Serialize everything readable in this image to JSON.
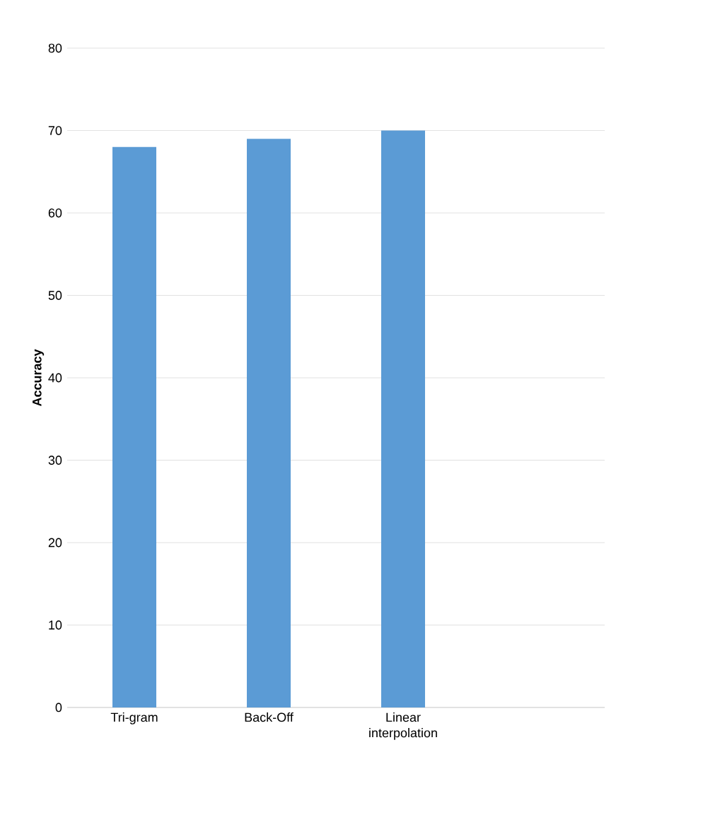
{
  "chart_data": {
    "type": "bar",
    "ylabel": "Accuracy",
    "categories": [
      "Tri-gram",
      "Back-Off",
      "Linear interpolation",
      null
    ],
    "values": [
      68,
      69,
      70,
      null
    ],
    "color": "#5b9bd5",
    "ylim": [
      0,
      80
    ],
    "yticks": [
      0,
      10,
      20,
      30,
      40,
      50,
      60,
      70,
      80
    ],
    "grid": "y"
  }
}
